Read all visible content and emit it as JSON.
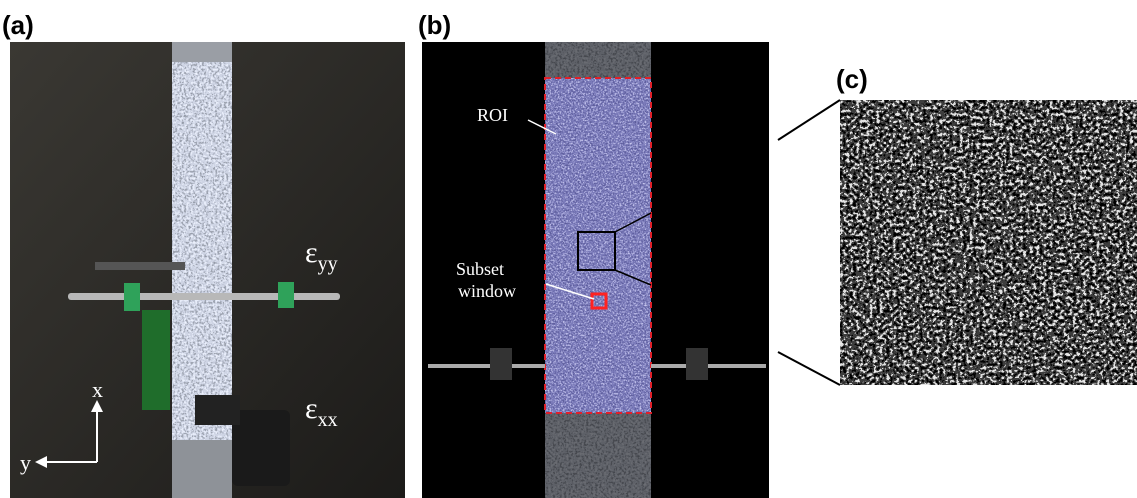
{
  "panels": [
    {
      "label": "(a)",
      "annotations": {
        "strain_yy": {
          "symbol": "ε",
          "subscript": "yy"
        },
        "strain_xx": {
          "symbol": "ε",
          "subscript": "xx"
        },
        "axis_x": "x",
        "axis_y": "y"
      }
    },
    {
      "label": "(b)",
      "annotations": {
        "roi": "ROI",
        "subset": [
          "Subset",
          "window"
        ]
      }
    },
    {
      "label": "(c)"
    }
  ]
}
